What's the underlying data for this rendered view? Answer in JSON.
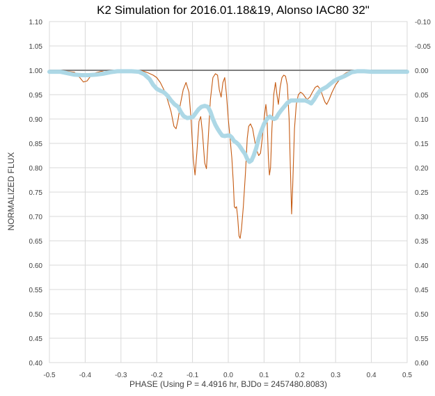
{
  "chart_data": {
    "type": "line",
    "title": "K2 Simulation for 2016.01.18&19, Alonso IAC80 32\"",
    "xlabel": "PHASE (Using P = 4.4916 hr, BJDo = 2457480.8083)",
    "ylabel": "NORMALIZED FLUX",
    "xlim": [
      -0.5,
      0.5
    ],
    "ylim": [
      0.4,
      1.1
    ],
    "y2lim": [
      0.6,
      -0.1
    ],
    "grid": true,
    "x_ticks": [
      "-0.5",
      "-0.4",
      "-0.3",
      "-0.2",
      "-0.1",
      "0.0",
      "0.1",
      "0.2",
      "0.3",
      "0.4",
      "0.5"
    ],
    "y_ticks": [
      "0.40",
      "0.45",
      "0.50",
      "0.55",
      "0.60",
      "0.65",
      "0.70",
      "0.75",
      "0.80",
      "0.85",
      "0.90",
      "0.95",
      "1.00",
      "1.05",
      "1.10"
    ],
    "y2_ticks": [
      "0.60",
      "0.55",
      "0.50",
      "0.45",
      "0.40",
      "0.35",
      "0.30",
      "0.25",
      "0.20",
      "0.15",
      "0.10",
      "0.05",
      "0.00",
      "-0.05",
      "-0.10"
    ],
    "reference_line": {
      "y": 1.0,
      "color": "#7f7f7f"
    },
    "series": [
      {
        "color": "#c55a11",
        "style": "thin-line",
        "points": [
          [
            -0.5,
            1.0
          ],
          [
            -0.47,
            0.999
          ],
          [
            -0.45,
            0.998
          ],
          [
            -0.43,
            0.996
          ],
          [
            -0.415,
            0.985
          ],
          [
            -0.405,
            0.976
          ],
          [
            -0.395,
            0.978
          ],
          [
            -0.385,
            0.988
          ],
          [
            -0.37,
            0.995
          ],
          [
            -0.355,
            0.998
          ],
          [
            -0.34,
            0.996
          ],
          [
            -0.325,
            0.998
          ],
          [
            -0.31,
            1.0
          ],
          [
            -0.28,
            0.999
          ],
          [
            -0.26,
            0.998
          ],
          [
            -0.24,
            0.999
          ],
          [
            -0.225,
            0.995
          ],
          [
            -0.21,
            0.99
          ],
          [
            -0.2,
            0.985
          ],
          [
            -0.19,
            0.975
          ],
          [
            -0.18,
            0.96
          ],
          [
            -0.17,
            0.94
          ],
          [
            -0.16,
            0.915
          ],
          [
            -0.152,
            0.885
          ],
          [
            -0.146,
            0.88
          ],
          [
            -0.14,
            0.9
          ],
          [
            -0.134,
            0.93
          ],
          [
            -0.126,
            0.96
          ],
          [
            -0.118,
            0.975
          ],
          [
            -0.11,
            0.955
          ],
          [
            -0.104,
            0.9
          ],
          [
            -0.098,
            0.82
          ],
          [
            -0.093,
            0.785
          ],
          [
            -0.088,
            0.83
          ],
          [
            -0.082,
            0.895
          ],
          [
            -0.077,
            0.905
          ],
          [
            -0.072,
            0.87
          ],
          [
            -0.066,
            0.81
          ],
          [
            -0.061,
            0.798
          ],
          [
            -0.056,
            0.86
          ],
          [
            -0.05,
            0.94
          ],
          [
            -0.043,
            0.985
          ],
          [
            -0.036,
            0.993
          ],
          [
            -0.03,
            0.99
          ],
          [
            -0.025,
            0.96
          ],
          [
            -0.02,
            0.945
          ],
          [
            -0.015,
            0.975
          ],
          [
            -0.01,
            0.985
          ],
          [
            -0.005,
            0.95
          ],
          [
            0.0,
            0.9
          ],
          [
            0.005,
            0.86
          ],
          [
            0.01,
            0.82
          ],
          [
            0.014,
            0.77
          ],
          [
            0.017,
            0.72
          ],
          [
            0.02,
            0.717
          ],
          [
            0.023,
            0.72
          ],
          [
            0.026,
            0.7
          ],
          [
            0.03,
            0.66
          ],
          [
            0.033,
            0.655
          ],
          [
            0.037,
            0.675
          ],
          [
            0.042,
            0.72
          ],
          [
            0.048,
            0.79
          ],
          [
            0.053,
            0.86
          ],
          [
            0.057,
            0.885
          ],
          [
            0.062,
            0.89
          ],
          [
            0.068,
            0.88
          ],
          [
            0.074,
            0.855
          ],
          [
            0.08,
            0.835
          ],
          [
            0.085,
            0.825
          ],
          [
            0.09,
            0.83
          ],
          [
            0.095,
            0.86
          ],
          [
            0.1,
            0.9
          ],
          [
            0.105,
            0.93
          ],
          [
            0.108,
            0.91
          ],
          [
            0.112,
            0.82
          ],
          [
            0.115,
            0.785
          ],
          [
            0.118,
            0.8
          ],
          [
            0.122,
            0.88
          ],
          [
            0.127,
            0.95
          ],
          [
            0.132,
            0.975
          ],
          [
            0.136,
            0.95
          ],
          [
            0.14,
            0.93
          ],
          [
            0.145,
            0.965
          ],
          [
            0.15,
            0.985
          ],
          [
            0.155,
            0.99
          ],
          [
            0.16,
            0.988
          ],
          [
            0.165,
            0.97
          ],
          [
            0.17,
            0.9
          ],
          [
            0.174,
            0.79
          ],
          [
            0.177,
            0.705
          ],
          [
            0.18,
            0.76
          ],
          [
            0.185,
            0.88
          ],
          [
            0.19,
            0.93
          ],
          [
            0.196,
            0.95
          ],
          [
            0.202,
            0.955
          ],
          [
            0.208,
            0.952
          ],
          [
            0.215,
            0.945
          ],
          [
            0.22,
            0.94
          ],
          [
            0.228,
            0.945
          ],
          [
            0.235,
            0.955
          ],
          [
            0.243,
            0.965
          ],
          [
            0.25,
            0.968
          ],
          [
            0.258,
            0.96
          ],
          [
            0.265,
            0.945
          ],
          [
            0.27,
            0.935
          ],
          [
            0.275,
            0.93
          ],
          [
            0.282,
            0.94
          ],
          [
            0.29,
            0.955
          ],
          [
            0.3,
            0.97
          ],
          [
            0.31,
            0.98
          ],
          [
            0.32,
            0.99
          ],
          [
            0.33,
            0.995
          ],
          [
            0.34,
            0.998
          ],
          [
            0.36,
            0.999
          ],
          [
            0.4,
            1.0
          ],
          [
            0.5,
            1.0
          ]
        ]
      },
      {
        "color": "#add8e6",
        "style": "thick-markers",
        "points": [
          [
            -0.5,
            0.997
          ],
          [
            -0.47,
            0.997
          ],
          [
            -0.45,
            0.994
          ],
          [
            -0.43,
            0.991
          ],
          [
            -0.41,
            0.99
          ],
          [
            -0.39,
            0.99
          ],
          [
            -0.37,
            0.991
          ],
          [
            -0.35,
            0.993
          ],
          [
            -0.33,
            0.996
          ],
          [
            -0.31,
            0.998
          ],
          [
            -0.29,
            0.998
          ],
          [
            -0.27,
            0.998
          ],
          [
            -0.25,
            0.997
          ],
          [
            -0.235,
            0.992
          ],
          [
            -0.22,
            0.982
          ],
          [
            -0.21,
            0.97
          ],
          [
            -0.2,
            0.962
          ],
          [
            -0.19,
            0.958
          ],
          [
            -0.18,
            0.955
          ],
          [
            -0.17,
            0.948
          ],
          [
            -0.16,
            0.938
          ],
          [
            -0.15,
            0.93
          ],
          [
            -0.14,
            0.925
          ],
          [
            -0.133,
            0.915
          ],
          [
            -0.125,
            0.906
          ],
          [
            -0.115,
            0.902
          ],
          [
            -0.105,
            0.903
          ],
          [
            -0.098,
            0.905
          ],
          [
            -0.09,
            0.913
          ],
          [
            -0.083,
            0.92
          ],
          [
            -0.075,
            0.925
          ],
          [
            -0.066,
            0.927
          ],
          [
            -0.057,
            0.925
          ],
          [
            -0.05,
            0.915
          ],
          [
            -0.043,
            0.9
          ],
          [
            -0.036,
            0.888
          ],
          [
            -0.03,
            0.88
          ],
          [
            -0.023,
            0.872
          ],
          [
            -0.017,
            0.866
          ],
          [
            -0.01,
            0.865
          ],
          [
            -0.003,
            0.866
          ],
          [
            0.004,
            0.866
          ],
          [
            0.01,
            0.862
          ],
          [
            0.016,
            0.855
          ],
          [
            0.022,
            0.852
          ],
          [
            0.028,
            0.848
          ],
          [
            0.034,
            0.842
          ],
          [
            0.04,
            0.835
          ],
          [
            0.047,
            0.828
          ],
          [
            0.053,
            0.818
          ],
          [
            0.059,
            0.812
          ],
          [
            0.065,
            0.815
          ],
          [
            0.071,
            0.825
          ],
          [
            0.078,
            0.84
          ],
          [
            0.085,
            0.86
          ],
          [
            0.092,
            0.875
          ],
          [
            0.1,
            0.89
          ],
          [
            0.108,
            0.9
          ],
          [
            0.116,
            0.905
          ],
          [
            0.122,
            0.902
          ],
          [
            0.128,
            0.9
          ],
          [
            0.134,
            0.902
          ],
          [
            0.14,
            0.91
          ],
          [
            0.148,
            0.918
          ],
          [
            0.156,
            0.925
          ],
          [
            0.165,
            0.933
          ],
          [
            0.175,
            0.938
          ],
          [
            0.185,
            0.938
          ],
          [
            0.195,
            0.938
          ],
          [
            0.205,
            0.938
          ],
          [
            0.215,
            0.938
          ],
          [
            0.225,
            0.935
          ],
          [
            0.232,
            0.932
          ],
          [
            0.24,
            0.94
          ],
          [
            0.248,
            0.95
          ],
          [
            0.256,
            0.958
          ],
          [
            0.265,
            0.962
          ],
          [
            0.275,
            0.966
          ],
          [
            0.285,
            0.972
          ],
          [
            0.295,
            0.978
          ],
          [
            0.305,
            0.982
          ],
          [
            0.315,
            0.985
          ],
          [
            0.325,
            0.988
          ],
          [
            0.335,
            0.992
          ],
          [
            0.345,
            0.996
          ],
          [
            0.36,
            0.998
          ],
          [
            0.38,
            0.998
          ],
          [
            0.4,
            0.997
          ],
          [
            0.45,
            0.997
          ],
          [
            0.5,
            0.997
          ]
        ]
      }
    ]
  }
}
